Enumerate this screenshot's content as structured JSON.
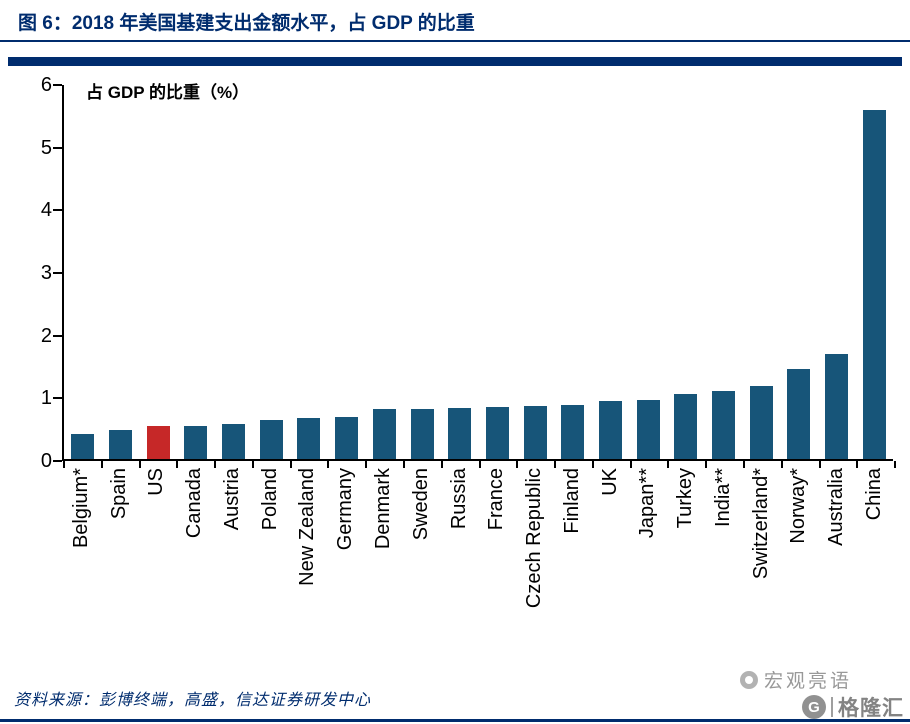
{
  "header": {
    "title": "图 6：2018 年美国基建支出金额水平，占 GDP 的比重"
  },
  "chart_data": {
    "type": "bar",
    "title": "2018 年美国基建支出金额水平，占 GDP 的比重",
    "axis_label": "占 GDP 的比重（%）",
    "xlabel": "",
    "ylabel": "占 GDP 的比重（%）",
    "categories": [
      "Belgium*",
      "Spain",
      "US",
      "Canada",
      "Austria",
      "Poland",
      "New Zealand",
      "Germany",
      "Denmark",
      "Sweden",
      "Russia",
      "France",
      "Czech Republic",
      "Finland",
      "UK",
      "Japan**",
      "Turkey",
      "India**",
      "Switzerland*",
      "Norway*",
      "Australia",
      "China"
    ],
    "values": [
      0.4,
      0.46,
      0.53,
      0.53,
      0.56,
      0.62,
      0.65,
      0.67,
      0.8,
      0.8,
      0.82,
      0.83,
      0.85,
      0.86,
      0.92,
      0.95,
      1.04,
      1.08,
      1.17,
      1.43,
      1.68,
      5.57
    ],
    "highlight_category": "US",
    "ylim": [
      0,
      6
    ],
    "yticks": [
      0,
      1,
      2,
      3,
      4,
      5,
      6
    ],
    "grid": false,
    "legend": "none",
    "bar_color": "#175579",
    "highlight_color": "#C62828"
  },
  "footer": {
    "source": "资料来源：彭博终端，高盛，信达证券研发中心"
  },
  "watermark": {
    "brand_top": "宏观亮语",
    "brand_bottom": "格隆汇",
    "logo_letter": "G"
  },
  "colors": {
    "accent_navy": "#002C6E",
    "axis_black": "#000000",
    "watermark_gray": "#8e8e8e"
  }
}
